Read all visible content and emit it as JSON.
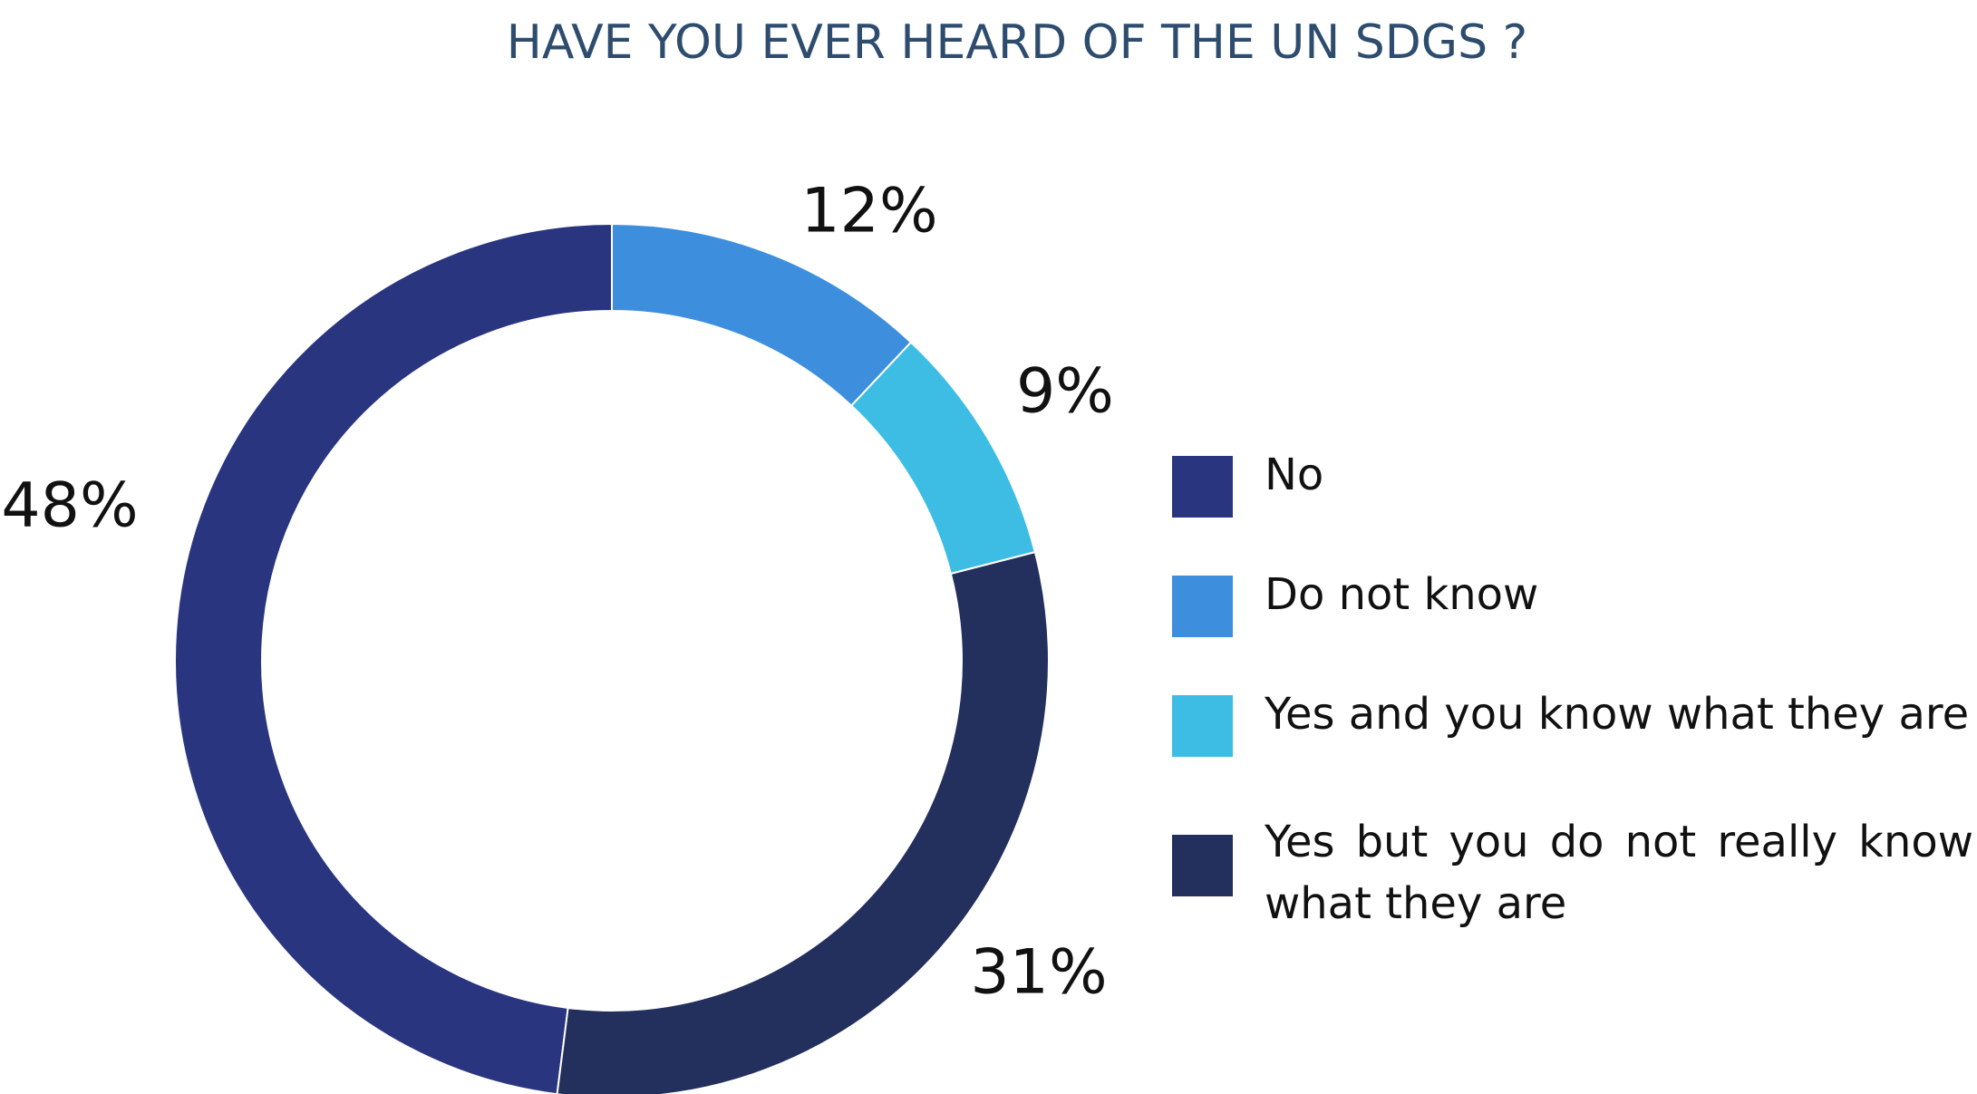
{
  "chart_data": {
    "type": "donut",
    "title": "HAVE YOU EVER HEARD OF THE UN SDGS ?",
    "categories": [
      "No",
      "Do not know",
      "Yes and you know what they are",
      "Yes but you do not really know what they are"
    ],
    "values": [
      48,
      12,
      9,
      31
    ],
    "value_labels": [
      "48%",
      "12%",
      "9%",
      "31%"
    ],
    "colors": [
      "#2a3580",
      "#3d8fde",
      "#3ebde4",
      "#232f5c"
    ]
  }
}
